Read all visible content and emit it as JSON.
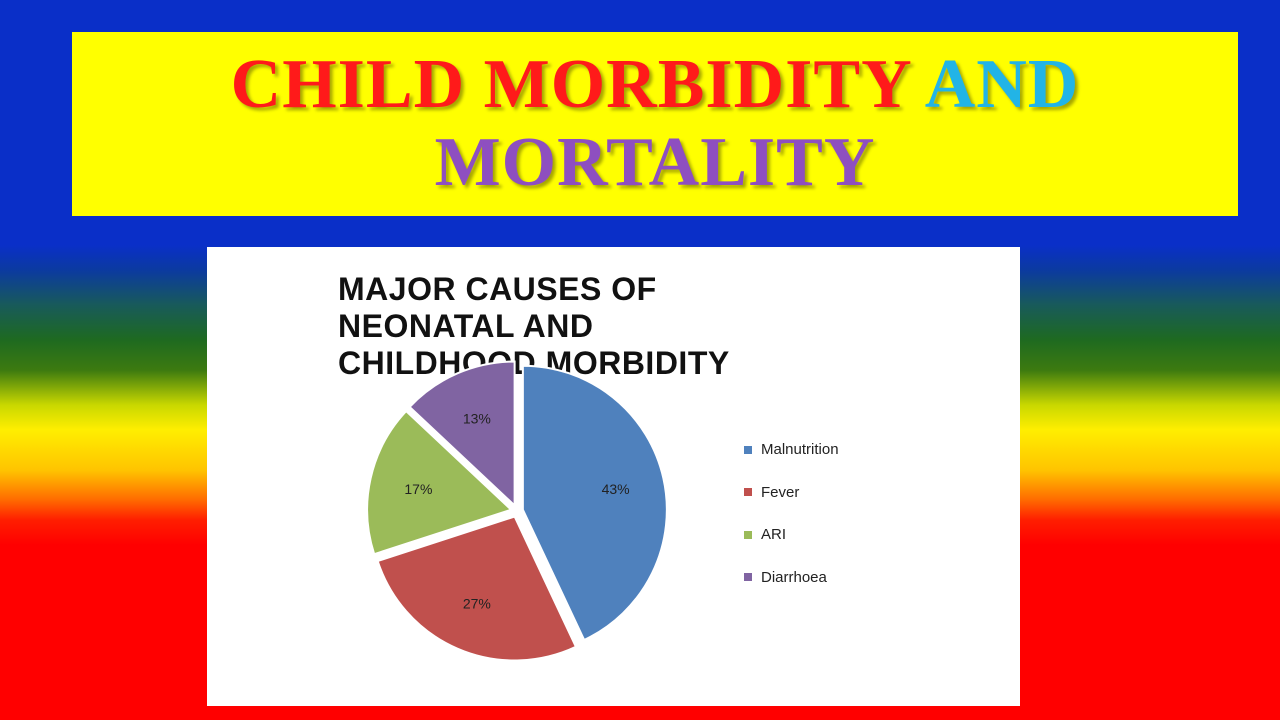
{
  "slide": {
    "title_part1": "CHILD MORBIDITY",
    "title_part2": "AND",
    "title_line2": "MORTALITY"
  },
  "chart_data": {
    "type": "pie",
    "title_lines": [
      "MAJOR CAUSES OF",
      "NEONATAL AND",
      "CHILDHOOD MORBIDITY"
    ],
    "categories": [
      "Malnutrition",
      "Fever",
      "ARI",
      "Diarrhoea"
    ],
    "values": [
      43,
      27,
      17,
      13
    ],
    "labels": [
      "43%",
      "27%",
      "17%",
      "13%"
    ],
    "colors": [
      "#4f81bd",
      "#c0504d",
      "#9bbb59",
      "#8064a2"
    ],
    "legend_position": "right",
    "exploded": true
  }
}
